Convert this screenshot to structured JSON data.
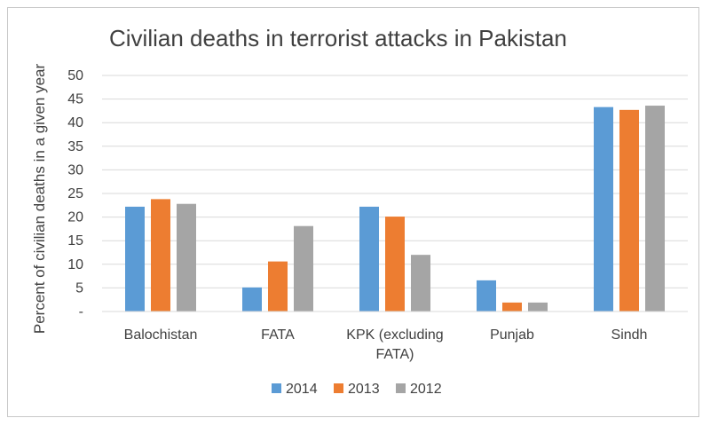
{
  "chart_data": {
    "type": "bar",
    "title": "Civilian deaths in terrorist attacks in Pakistan",
    "xlabel": "",
    "ylabel": "Percent of civilian deaths in a given year",
    "ylim": [
      0,
      50
    ],
    "yticks": [
      "-",
      "5",
      "10",
      "15",
      "20",
      "25",
      "30",
      "35",
      "40",
      "45",
      "50"
    ],
    "categories": [
      [
        "Balochistan"
      ],
      [
        "FATA"
      ],
      [
        "KPK (excluding",
        "FATA)"
      ],
      [
        "Punjab"
      ],
      [
        "Sindh"
      ]
    ],
    "series": [
      {
        "name": "2014",
        "color": "#5b9bd5",
        "values": [
          22.2,
          5.1,
          22.2,
          6.6,
          43.3
        ]
      },
      {
        "name": "2013",
        "color": "#ed7d31",
        "values": [
          23.8,
          10.6,
          20.1,
          1.9,
          42.7
        ]
      },
      {
        "name": "2012",
        "color": "#a5a5a5",
        "values": [
          22.8,
          18.1,
          12.0,
          1.9,
          43.6
        ]
      }
    ],
    "grid": true,
    "legend_position": "bottom"
  }
}
